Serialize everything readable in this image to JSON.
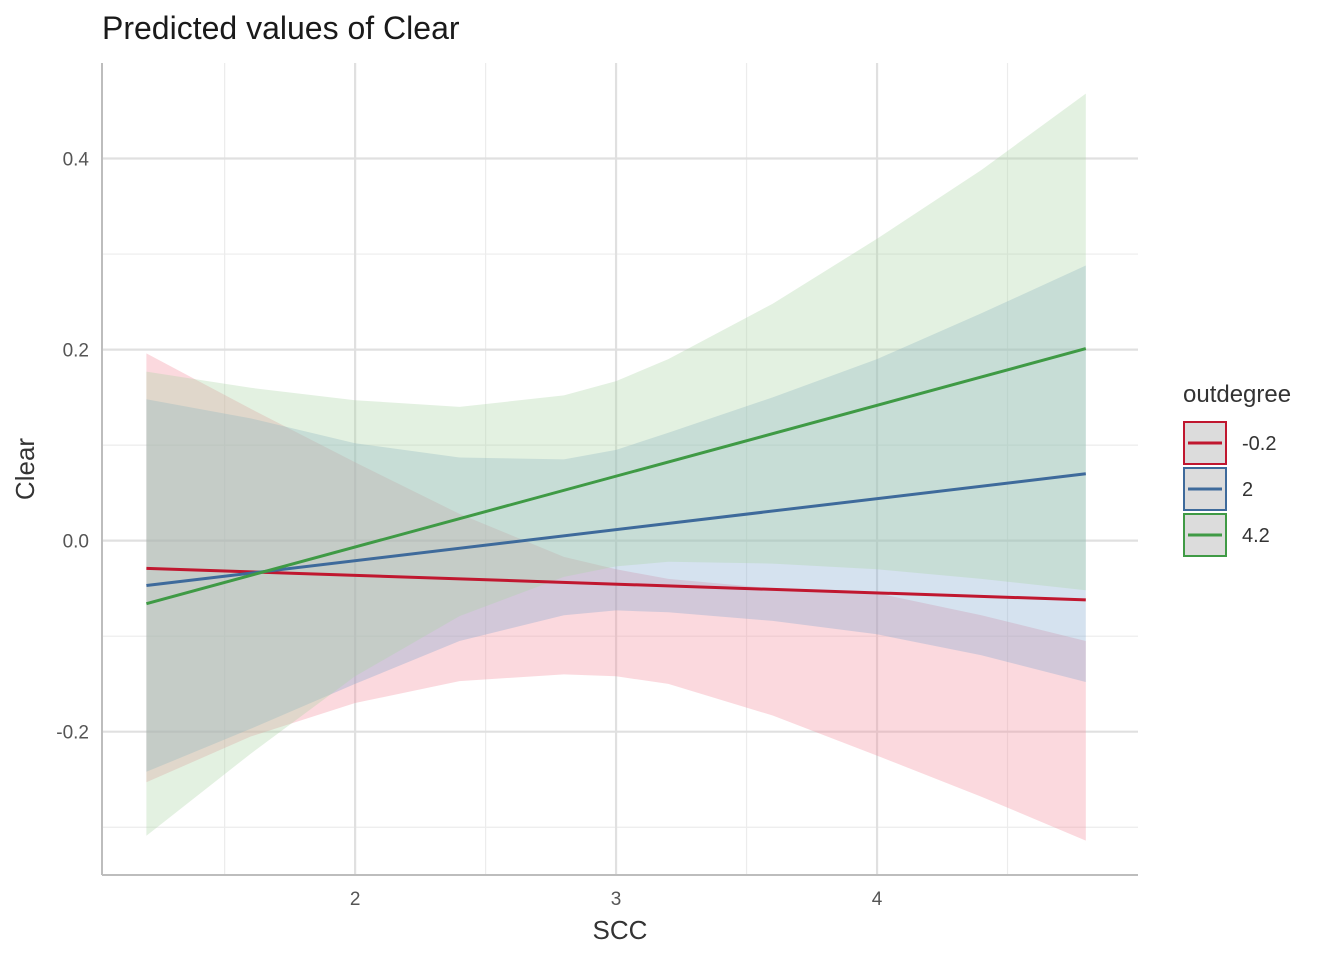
{
  "chart_data": {
    "type": "line",
    "title": "Predicted values of Clear",
    "xlabel": "SCC",
    "ylabel": "Clear",
    "xlim": [
      1.03,
      5.0
    ],
    "ylim": [
      -0.35,
      0.5
    ],
    "x_ticks": [
      2,
      3,
      4
    ],
    "x_tick_labels": [
      "2",
      "3",
      "4"
    ],
    "y_ticks": [
      -0.2,
      0.0,
      0.2,
      0.4
    ],
    "y_tick_labels": [
      "-0.2",
      "0.0",
      "0.2",
      "0.4"
    ],
    "x_minor_gridlines": [
      1.5,
      2.5,
      3.5,
      4.5
    ],
    "y_minor_gridlines": [
      -0.3,
      -0.1,
      0.1,
      0.3
    ],
    "grid": true,
    "legend": {
      "title": "outdegree",
      "position": "right"
    },
    "series": [
      {
        "name": "-0.2",
        "color": "#c0172f",
        "ribbon_color": "#f28d9c",
        "x": [
          1.2,
          4.8
        ],
        "y": [
          -0.029,
          -0.062
        ],
        "ribbon_x": [
          1.2,
          1.6,
          2.0,
          2.4,
          2.8,
          3.0,
          3.2,
          3.6,
          4.0,
          4.4,
          4.8
        ],
        "ribbon_lower": [
          -0.253,
          -0.205,
          -0.17,
          -0.147,
          -0.14,
          -0.142,
          -0.15,
          -0.183,
          -0.225,
          -0.268,
          -0.314
        ],
        "ribbon_upper": [
          0.196,
          0.138,
          0.082,
          0.028,
          -0.017,
          -0.03,
          -0.04,
          -0.05,
          -0.055,
          -0.078,
          -0.105
        ]
      },
      {
        "name": "2",
        "color": "#3e6a9b",
        "ribbon_color": "#7fa6cf",
        "x": [
          1.2,
          4.8
        ],
        "y": [
          -0.047,
          0.07
        ],
        "ribbon_x": [
          1.2,
          1.6,
          2.0,
          2.4,
          2.8,
          3.0,
          3.2,
          3.6,
          4.0,
          4.4,
          4.8
        ],
        "ribbon_lower": [
          -0.242,
          -0.197,
          -0.15,
          -0.105,
          -0.078,
          -0.073,
          -0.075,
          -0.084,
          -0.098,
          -0.12,
          -0.148
        ],
        "ribbon_upper": [
          0.148,
          0.128,
          0.102,
          0.087,
          0.085,
          0.095,
          0.113,
          0.15,
          0.19,
          0.238,
          0.288
        ]
      },
      {
        "name": "4.2",
        "color": "#3f9a45",
        "ribbon_color": "#a9d6a5",
        "x": [
          1.2,
          4.8
        ],
        "y": [
          -0.066,
          0.201
        ],
        "ribbon_x": [
          1.2,
          1.6,
          2.0,
          2.4,
          2.8,
          3.0,
          3.2,
          3.6,
          4.0,
          4.4,
          4.8
        ],
        "ribbon_lower": [
          -0.309,
          -0.223,
          -0.142,
          -0.079,
          -0.038,
          -0.027,
          -0.022,
          -0.024,
          -0.03,
          -0.04,
          -0.052
        ],
        "ribbon_upper": [
          0.177,
          0.16,
          0.147,
          0.14,
          0.152,
          0.167,
          0.19,
          0.248,
          0.316,
          0.388,
          0.468
        ]
      }
    ]
  }
}
